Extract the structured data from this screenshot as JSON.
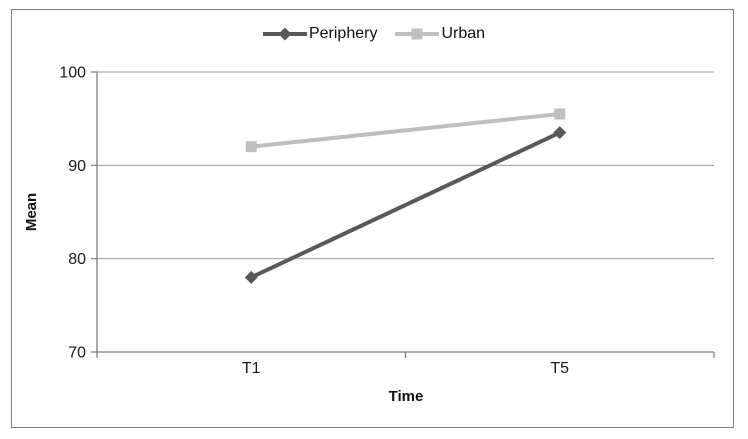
{
  "figure": {
    "background": "#ffffff",
    "border_color": "#808080"
  },
  "chart_data": {
    "type": "line",
    "title": "",
    "categories": [
      "T1",
      "T5"
    ],
    "series": [
      {
        "name": "Periphery",
        "values": [
          78,
          93.5
        ],
        "color": "#595959",
        "marker": "diamond"
      },
      {
        "name": "Urban",
        "values": [
          92,
          95.5
        ],
        "color": "#bfbfbf",
        "marker": "square"
      }
    ],
    "xlabel": "Time",
    "ylabel": "Mean",
    "ylim": [
      70,
      100
    ],
    "yticks": [
      70,
      80,
      90,
      100
    ],
    "grid": true,
    "legend_position": "top-center",
    "gridline_color": "#999999",
    "axis_color": "#808080",
    "text_color": "#1a1a1a"
  }
}
